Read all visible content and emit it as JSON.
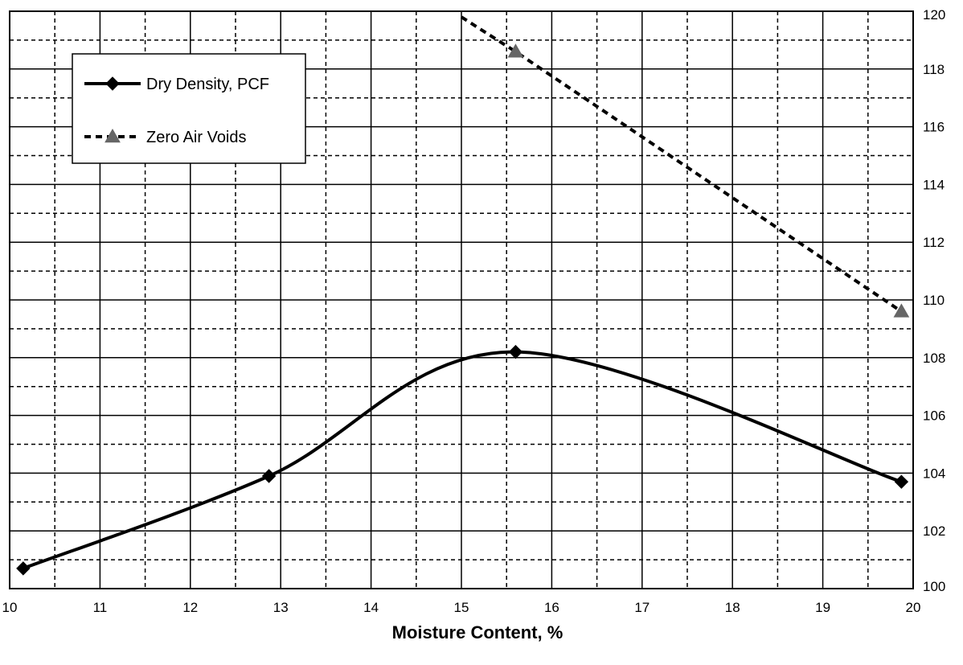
{
  "chart_data": {
    "type": "line",
    "title": "",
    "xlabel": "Moisture Content, %",
    "ylabel": "",
    "xlim": [
      10,
      20
    ],
    "ylim": [
      100,
      120
    ],
    "x_ticks": [
      10,
      11,
      12,
      13,
      14,
      15,
      16,
      17,
      18,
      19,
      20
    ],
    "y_ticks": [
      100,
      102,
      104,
      106,
      108,
      110,
      112,
      114,
      116,
      118,
      120
    ],
    "y_axis_side": "right",
    "grid": true,
    "legend_position": "top-left",
    "series": [
      {
        "name": "Dry Density, PCF",
        "line_style": "solid",
        "marker": "diamond",
        "color": "#000000",
        "smooth": true,
        "x": [
          10.15,
          12.87,
          15.6,
          19.87
        ],
        "y": [
          100.7,
          103.9,
          108.2,
          103.7
        ]
      },
      {
        "name": "Zero Air Voids",
        "line_style": "dashed",
        "marker": "triangle",
        "color": "#000000",
        "marker_color": "#666666",
        "smooth": false,
        "x": [
          15.0,
          15.6,
          19.87
        ],
        "y": [
          119.8,
          118.6,
          109.6
        ]
      }
    ]
  }
}
